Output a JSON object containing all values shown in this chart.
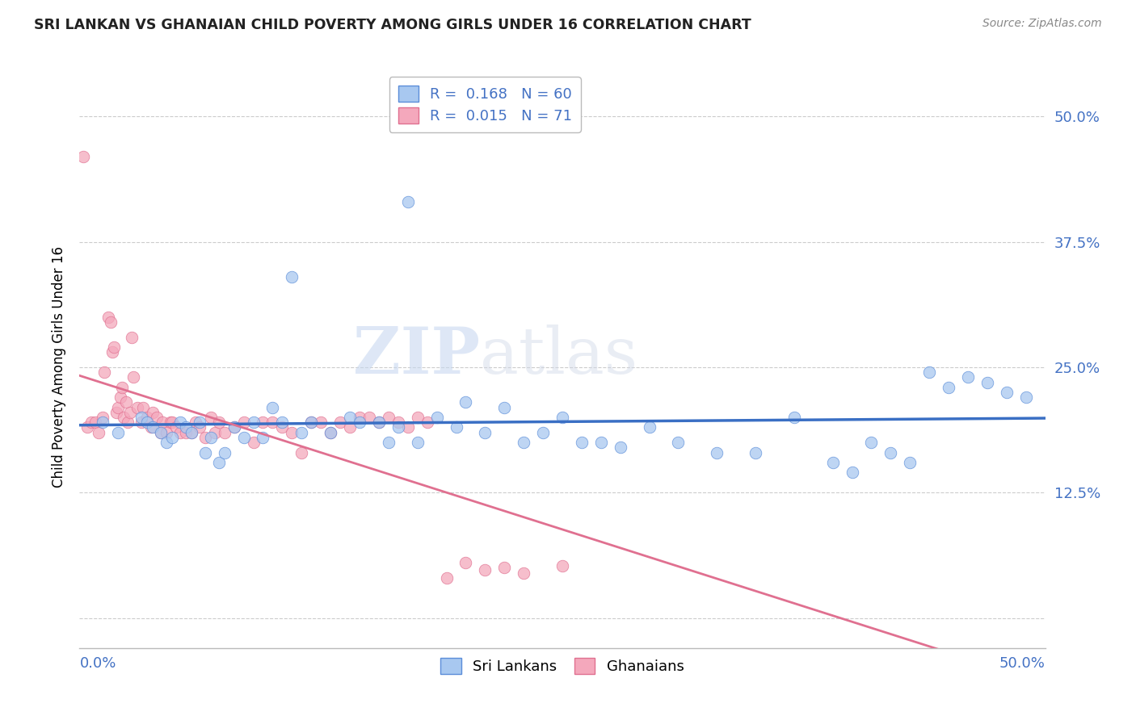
{
  "title": "SRI LANKAN VS GHANAIAN CHILD POVERTY AMONG GIRLS UNDER 16 CORRELATION CHART",
  "source": "Source: ZipAtlas.com",
  "ylabel": "Child Poverty Among Girls Under 16",
  "yticks": [
    0.0,
    0.125,
    0.25,
    0.375,
    0.5
  ],
  "ytick_labels": [
    "",
    "12.5%",
    "25.0%",
    "37.5%",
    "50.0%"
  ],
  "xlim": [
    0.0,
    0.5
  ],
  "ylim": [
    -0.03,
    0.53
  ],
  "watermark_zip": "ZIP",
  "watermark_atlas": "atlas",
  "legend_label1": "R =  0.168   N = 60",
  "legend_label2": "R =  0.015   N = 71",
  "blue_fill": "#A8C8F0",
  "blue_edge": "#5B8DD9",
  "pink_fill": "#F4A8BC",
  "pink_edge": "#E07090",
  "blue_line": "#3A6FC4",
  "pink_line": "#E07090",
  "sri_lanka_label": "Sri Lankans",
  "ghana_label": "Ghanaians",
  "sl_x": [
    0.012,
    0.02,
    0.032,
    0.035,
    0.038,
    0.042,
    0.045,
    0.048,
    0.052,
    0.055,
    0.058,
    0.062,
    0.065,
    0.068,
    0.072,
    0.075,
    0.08,
    0.085,
    0.09,
    0.095,
    0.1,
    0.105,
    0.11,
    0.115,
    0.12,
    0.13,
    0.14,
    0.145,
    0.155,
    0.16,
    0.165,
    0.17,
    0.175,
    0.185,
    0.195,
    0.2,
    0.21,
    0.22,
    0.23,
    0.24,
    0.25,
    0.26,
    0.27,
    0.28,
    0.295,
    0.31,
    0.33,
    0.35,
    0.37,
    0.39,
    0.4,
    0.41,
    0.42,
    0.43,
    0.44,
    0.45,
    0.46,
    0.47,
    0.48,
    0.49
  ],
  "sl_y": [
    0.195,
    0.185,
    0.2,
    0.195,
    0.19,
    0.185,
    0.175,
    0.18,
    0.195,
    0.19,
    0.185,
    0.195,
    0.165,
    0.18,
    0.155,
    0.165,
    0.19,
    0.18,
    0.195,
    0.18,
    0.21,
    0.195,
    0.34,
    0.185,
    0.195,
    0.185,
    0.2,
    0.195,
    0.195,
    0.175,
    0.19,
    0.415,
    0.175,
    0.2,
    0.19,
    0.215,
    0.185,
    0.21,
    0.175,
    0.185,
    0.2,
    0.175,
    0.175,
    0.17,
    0.19,
    0.175,
    0.165,
    0.165,
    0.2,
    0.155,
    0.145,
    0.175,
    0.165,
    0.155,
    0.245,
    0.23,
    0.24,
    0.235,
    0.225,
    0.22
  ],
  "gh_x": [
    0.002,
    0.004,
    0.006,
    0.008,
    0.01,
    0.012,
    0.013,
    0.015,
    0.016,
    0.017,
    0.018,
    0.019,
    0.02,
    0.021,
    0.022,
    0.023,
    0.024,
    0.025,
    0.026,
    0.027,
    0.028,
    0.03,
    0.032,
    0.033,
    0.035,
    0.037,
    0.038,
    0.04,
    0.042,
    0.043,
    0.045,
    0.047,
    0.048,
    0.05,
    0.052,
    0.055,
    0.058,
    0.06,
    0.062,
    0.065,
    0.068,
    0.07,
    0.072,
    0.075,
    0.08,
    0.085,
    0.09,
    0.095,
    0.1,
    0.105,
    0.11,
    0.115,
    0.12,
    0.125,
    0.13,
    0.135,
    0.14,
    0.145,
    0.15,
    0.155,
    0.16,
    0.165,
    0.17,
    0.175,
    0.18,
    0.19,
    0.2,
    0.21,
    0.22,
    0.23,
    0.25
  ],
  "gh_y": [
    0.46,
    0.19,
    0.195,
    0.195,
    0.185,
    0.2,
    0.245,
    0.3,
    0.295,
    0.265,
    0.27,
    0.205,
    0.21,
    0.22,
    0.23,
    0.2,
    0.215,
    0.195,
    0.205,
    0.28,
    0.24,
    0.21,
    0.195,
    0.21,
    0.2,
    0.19,
    0.205,
    0.2,
    0.185,
    0.195,
    0.185,
    0.195,
    0.195,
    0.19,
    0.185,
    0.185,
    0.185,
    0.195,
    0.19,
    0.18,
    0.2,
    0.185,
    0.195,
    0.185,
    0.19,
    0.195,
    0.175,
    0.195,
    0.195,
    0.19,
    0.185,
    0.165,
    0.195,
    0.195,
    0.185,
    0.195,
    0.19,
    0.2,
    0.2,
    0.195,
    0.2,
    0.195,
    0.19,
    0.2,
    0.195,
    0.04,
    0.055,
    0.048,
    0.05,
    0.045,
    0.052
  ],
  "background_color": "#FFFFFF",
  "grid_color": "#CCCCCC",
  "axis_label_color": "#4472C4",
  "title_color": "#222222"
}
